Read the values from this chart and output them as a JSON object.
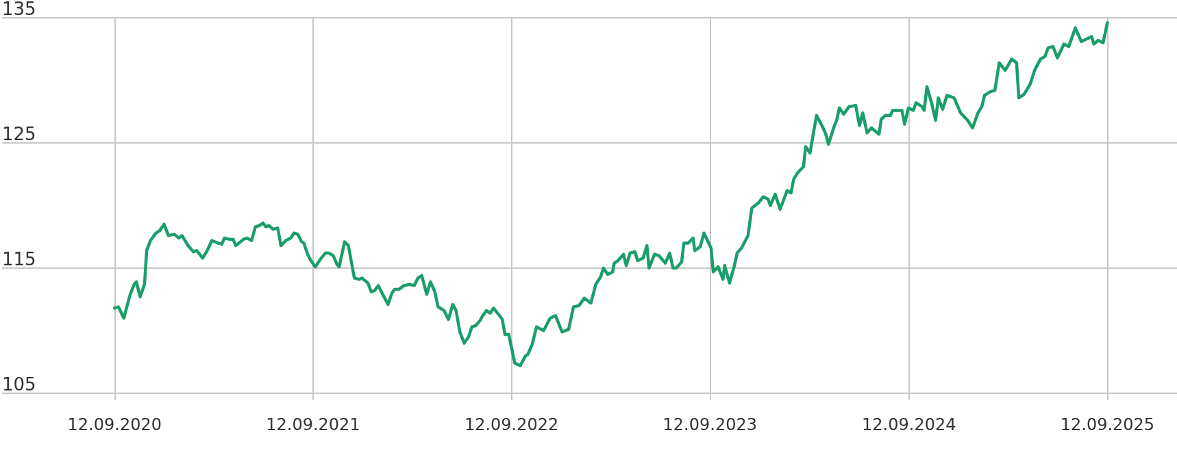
{
  "chart_data": {
    "type": "line",
    "x": [
      "2020-09-12",
      "2020-09-19",
      "2020-09-29",
      "2020-10-10",
      "2020-10-18",
      "2020-10-22",
      "2020-10-29",
      "2020-11-06",
      "2020-11-10",
      "2020-11-17",
      "2020-11-27",
      "2020-12-04",
      "2020-12-12",
      "2020-12-20",
      "2020-12-31",
      "2021-01-08",
      "2021-01-14",
      "2021-01-25",
      "2021-02-04",
      "2021-02-10",
      "2021-02-21",
      "2021-02-28",
      "2021-03-10",
      "2021-03-21",
      "2021-03-28",
      "2021-04-02",
      "2021-04-11",
      "2021-04-18",
      "2021-04-23",
      "2021-05-07",
      "2021-05-14",
      "2021-05-22",
      "2021-05-29",
      "2021-06-05",
      "2021-06-12",
      "2021-06-17",
      "2021-06-23",
      "2021-06-30",
      "2021-07-09",
      "2021-07-15",
      "2021-07-24",
      "2021-08-02",
      "2021-08-08",
      "2021-08-15",
      "2021-08-22",
      "2021-08-26",
      "2021-09-02",
      "2021-09-08",
      "2021-09-16",
      "2021-09-27",
      "2021-10-05",
      "2021-10-11",
      "2021-10-19",
      "2021-10-26",
      "2021-10-30",
      "2021-11-09",
      "2021-11-16",
      "2021-11-27",
      "2021-12-06",
      "2021-12-11",
      "2021-12-22",
      "2021-12-28",
      "2022-01-03",
      "2022-01-10",
      "2022-01-18",
      "2022-01-28",
      "2022-02-04",
      "2022-02-09",
      "2022-02-17",
      "2022-02-26",
      "2022-03-09",
      "2022-03-17",
      "2022-03-24",
      "2022-03-31",
      "2022-04-09",
      "2022-04-16",
      "2022-04-24",
      "2022-04-30",
      "2022-05-11",
      "2022-05-19",
      "2022-05-27",
      "2022-06-02",
      "2022-06-09",
      "2022-06-17",
      "2022-06-25",
      "2022-07-01",
      "2022-07-08",
      "2022-07-16",
      "2022-07-21",
      "2022-07-28",
      "2022-08-04",
      "2022-08-10",
      "2022-08-21",
      "2022-08-26",
      "2022-08-31",
      "2022-09-07",
      "2022-09-18",
      "2022-09-28",
      "2022-10-08",
      "2022-10-12",
      "2022-10-20",
      "2022-10-28",
      "2022-11-10",
      "2022-11-22",
      "2022-12-02",
      "2022-12-14",
      "2022-12-26",
      "2023-01-04",
      "2023-01-14",
      "2023-01-24",
      "2023-02-05",
      "2023-02-14",
      "2023-02-23",
      "2023-02-28",
      "2023-03-08",
      "2023-03-17",
      "2023-03-20",
      "2023-03-27",
      "2023-04-06",
      "2023-04-11",
      "2023-04-18",
      "2023-04-27",
      "2023-05-02",
      "2023-05-12",
      "2023-05-19",
      "2023-05-23",
      "2023-06-02",
      "2023-06-10",
      "2023-06-22",
      "2023-06-30",
      "2023-07-06",
      "2023-07-12",
      "2023-07-22",
      "2023-07-26",
      "2023-08-03",
      "2023-08-12",
      "2023-08-15",
      "2023-08-25",
      "2023-09-01",
      "2023-09-14",
      "2023-09-18",
      "2023-09-27",
      "2023-10-06",
      "2023-10-09",
      "2023-10-18",
      "2023-10-27",
      "2023-11-01",
      "2023-11-09",
      "2023-11-21",
      "2023-11-28",
      "2023-12-10",
      "2023-12-19",
      "2023-12-28",
      "2024-01-01",
      "2024-01-10",
      "2024-01-19",
      "2024-02-01",
      "2024-02-08",
      "2024-02-13",
      "2024-02-20",
      "2024-03-02",
      "2024-03-06",
      "2024-03-14",
      "2024-03-26",
      "2024-04-06",
      "2024-04-12",
      "2024-04-17",
      "2024-04-28",
      "2024-05-02",
      "2024-05-07",
      "2024-05-15",
      "2024-05-25",
      "2024-06-06",
      "2024-06-13",
      "2024-06-19",
      "2024-06-27",
      "2024-07-05",
      "2024-07-19",
      "2024-07-23",
      "2024-07-31",
      "2024-08-09",
      "2024-08-13",
      "2024-08-21",
      "2024-08-30",
      "2024-09-04",
      "2024-09-11",
      "2024-09-20",
      "2024-09-25",
      "2024-10-06",
      "2024-10-10",
      "2024-10-15",
      "2024-10-23",
      "2024-10-31",
      "2024-11-05",
      "2024-11-13",
      "2024-11-21",
      "2024-12-04",
      "2024-12-16",
      "2024-12-29",
      "2025-01-07",
      "2025-01-17",
      "2025-01-24",
      "2025-01-29",
      "2025-02-09",
      "2025-02-17",
      "2025-02-25",
      "2025-03-08",
      "2025-03-20",
      "2025-03-29",
      "2025-04-02",
      "2025-04-12",
      "2025-04-23",
      "2025-05-01",
      "2025-05-12",
      "2025-05-20",
      "2025-05-26",
      "2025-06-04",
      "2025-06-12",
      "2025-06-24",
      "2025-07-03",
      "2025-07-15",
      "2025-07-26",
      "2025-08-14",
      "2025-08-18",
      "2025-08-26",
      "2025-09-04",
      "2025-09-12"
    ],
    "series": [
      {
        "color": "#1a9e6a",
        "values": [
          111.8,
          111.9,
          111.0,
          112.8,
          113.7,
          113.9,
          112.7,
          113.7,
          116.4,
          117.2,
          117.8,
          118.0,
          118.5,
          117.6,
          117.7,
          117.4,
          117.6,
          116.8,
          116.3,
          116.4,
          115.8,
          116.3,
          117.2,
          117.0,
          116.9,
          117.4,
          117.3,
          117.3,
          116.8,
          117.3,
          117.4,
          117.2,
          118.3,
          118.4,
          118.6,
          118.3,
          118.4,
          118.1,
          118.2,
          116.8,
          117.2,
          117.4,
          117.8,
          117.7,
          117.1,
          117.0,
          116.1,
          115.6,
          115.1,
          115.8,
          116.2,
          116.2,
          116.0,
          115.3,
          115.1,
          117.1,
          116.8,
          114.2,
          114.1,
          114.2,
          113.8,
          113.1,
          113.2,
          113.6,
          112.9,
          112.1,
          113.0,
          113.3,
          113.3,
          113.6,
          113.7,
          113.6,
          114.2,
          114.4,
          112.9,
          113.9,
          113.1,
          111.9,
          111.6,
          110.9,
          112.1,
          111.6,
          109.9,
          109.0,
          109.5,
          110.3,
          110.4,
          110.8,
          111.2,
          111.6,
          111.4,
          111.8,
          111.2,
          110.9,
          109.7,
          109.7,
          107.4,
          107.2,
          108.0,
          108.1,
          108.9,
          110.3,
          110.0,
          111.0,
          111.2,
          109.9,
          110.1,
          111.9,
          112.0,
          112.6,
          112.2,
          113.7,
          114.3,
          115.0,
          114.5,
          114.7,
          115.4,
          115.6,
          116.1,
          115.2,
          116.2,
          116.3,
          115.6,
          115.8,
          116.8,
          115.0,
          116.1,
          116.0,
          115.4,
          116.2,
          115.0,
          115.0,
          115.5,
          117.0,
          117.0,
          117.4,
          116.4,
          116.7,
          117.8,
          116.6,
          114.7,
          115.1,
          114.1,
          115.2,
          113.8,
          115.2,
          116.2,
          116.6,
          117.6,
          119.8,
          120.2,
          120.7,
          120.5,
          120.0,
          120.9,
          119.7,
          121.2,
          121.0,
          122.1,
          122.6,
          123.1,
          124.7,
          124.2,
          127.2,
          126.3,
          125.7,
          124.9,
          126.4,
          126.8,
          127.8,
          127.3,
          127.9,
          128.0,
          126.4,
          127.4,
          125.8,
          126.2,
          125.7,
          126.9,
          127.2,
          127.2,
          127.6,
          127.6,
          127.6,
          126.5,
          127.8,
          127.6,
          128.2,
          127.9,
          127.6,
          129.5,
          128.3,
          126.8,
          128.6,
          127.7,
          128.8,
          128.6,
          127.4,
          126.8,
          126.2,
          127.4,
          127.9,
          128.8,
          129.1,
          129.2,
          131.4,
          130.8,
          131.7,
          131.4,
          128.6,
          128.9,
          129.7,
          130.8,
          131.7,
          131.9,
          132.6,
          132.7,
          131.8,
          132.9,
          132.7,
          134.2,
          133.1,
          133.5,
          132.9,
          133.2,
          133.0,
          134.6
        ]
      }
    ],
    "xlim": [
      "2020-02-18",
      "2026-01-18"
    ],
    "xticks": [
      {
        "value": "2020-09-12",
        "label": "12.09.2020"
      },
      {
        "value": "2021-09-12",
        "label": "12.09.2021"
      },
      {
        "value": "2022-09-12",
        "label": "12.09.2022"
      },
      {
        "value": "2023-09-12",
        "label": "12.09.2023"
      },
      {
        "value": "2024-09-12",
        "label": "12.09.2024"
      },
      {
        "value": "2025-09-12",
        "label": "12.09.2025"
      }
    ],
    "ylim": [
      105,
      135
    ],
    "yticks": [
      105,
      115,
      125,
      135
    ],
    "grid": true,
    "marker": "none",
    "line_style": "solid"
  }
}
